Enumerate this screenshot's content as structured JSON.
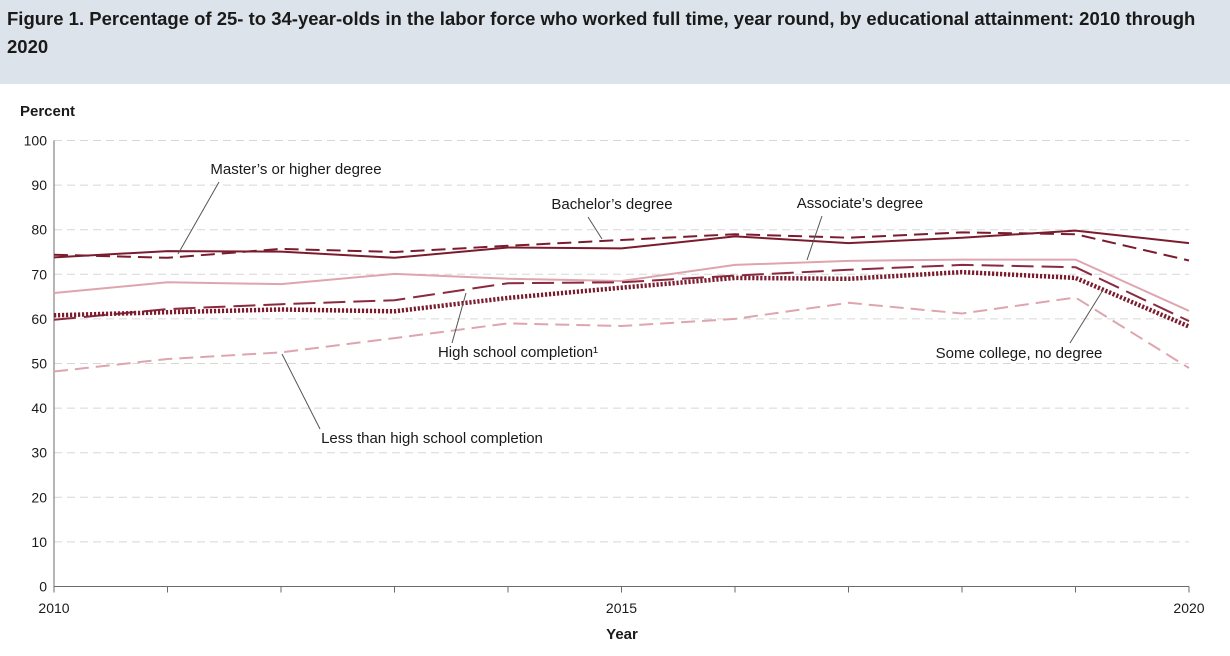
{
  "chart_data": {
    "type": "line",
    "title": "Figure 1. Percentage of 25- to 34-year-olds in the labor force who worked full time, year round, by educational attainment: 2010 through 2020",
    "xlabel": "Year",
    "ylabel": "Percent",
    "x": [
      2010,
      2011,
      2012,
      2013,
      2014,
      2015,
      2016,
      2017,
      2018,
      2019,
      2020
    ],
    "xticks": [
      "2010",
      "2015",
      "2020"
    ],
    "yticks": [
      "0",
      "10",
      "20",
      "30",
      "40",
      "50",
      "60",
      "70",
      "80",
      "90",
      "100"
    ],
    "ylim": [
      0,
      100
    ],
    "xlim": [
      2010,
      2020
    ],
    "grid": "horizontal dashed",
    "series": [
      {
        "name": "Master’s or higher degree",
        "color": "#7b1c2e",
        "style": "solid",
        "values": [
          73.8,
          75.2,
          75.1,
          73.7,
          76.0,
          75.8,
          78.5,
          77.0,
          78.2,
          79.8,
          77.0
        ]
      },
      {
        "name": "Bachelor’s degree",
        "color": "#7b1c2e",
        "style": "dashed",
        "values": [
          74.4,
          73.7,
          75.7,
          75.0,
          76.4,
          77.7,
          79.0,
          78.2,
          79.4,
          79.0,
          73.1
        ]
      },
      {
        "name": "Associate’s degree",
        "color": "#8b2a3e",
        "style": "longdash",
        "values": [
          59.8,
          62.2,
          63.3,
          64.2,
          68.0,
          68.2,
          69.7,
          71.0,
          72.1,
          71.6,
          59.5
        ]
      },
      {
        "name": "Some college, no degree",
        "color": "#dea5ae",
        "style": "solid",
        "values": [
          65.8,
          68.2,
          67.8,
          70.1,
          69.0,
          68.5,
          72.1,
          73.0,
          73.3,
          73.3,
          61.8
        ]
      },
      {
        "name": "High school completion¹",
        "color": "#7b1c2e",
        "style": "dotted",
        "values": [
          60.8,
          61.5,
          62.1,
          61.7,
          64.7,
          67.0,
          69.2,
          69.0,
          70.5,
          69.2,
          58.3
        ]
      },
      {
        "name": "Less than high school completion",
        "color": "#dea5ae",
        "style": "dashed",
        "values": [
          48.2,
          51.0,
          52.5,
          55.7,
          59.0,
          58.4,
          60.0,
          63.6,
          61.2,
          64.8,
          49.0
        ]
      }
    ]
  }
}
